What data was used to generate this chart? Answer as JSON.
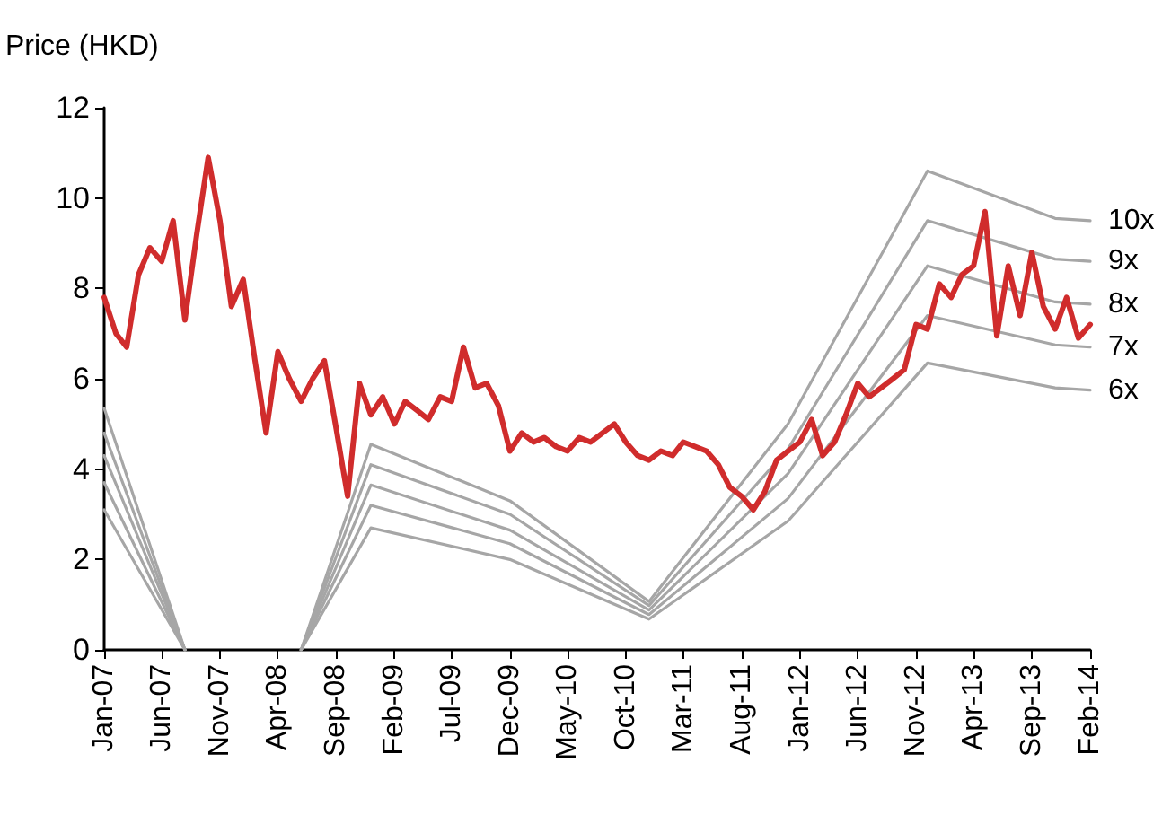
{
  "chart_data": {
    "type": "line",
    "ylabel": "Price (HKD)",
    "ylim": [
      0,
      12
    ],
    "yticks": [
      0,
      2,
      4,
      6,
      8,
      10,
      12
    ],
    "xlim": [
      "2007-01",
      "2014-02"
    ],
    "xticks": [
      {
        "value": "2007-01",
        "label": "Jan-07"
      },
      {
        "value": "2007-06",
        "label": "Jun-07"
      },
      {
        "value": "2007-11",
        "label": "Nov-07"
      },
      {
        "value": "2008-04",
        "label": "Apr-08"
      },
      {
        "value": "2008-09",
        "label": "Sep-08"
      },
      {
        "value": "2009-02",
        "label": "Feb-09"
      },
      {
        "value": "2009-07",
        "label": "Jul-09"
      },
      {
        "value": "2009-12",
        "label": "Dec-09"
      },
      {
        "value": "2010-05",
        "label": "May-10"
      },
      {
        "value": "2010-10",
        "label": "Oct-10"
      },
      {
        "value": "2011-03",
        "label": "Mar-11"
      },
      {
        "value": "2011-08",
        "label": "Aug-11"
      },
      {
        "value": "2012-01",
        "label": "Jan-12"
      },
      {
        "value": "2012-06",
        "label": "Jun-12"
      },
      {
        "value": "2012-11",
        "label": "Nov-12"
      },
      {
        "value": "2013-04",
        "label": "Apr-13"
      },
      {
        "value": "2013-09",
        "label": "Sep-13"
      },
      {
        "value": "2014-02",
        "label": "Feb-14"
      }
    ],
    "grid": false,
    "legend": false,
    "marker": "none",
    "line_style": "solid",
    "series": [
      {
        "name": "10x",
        "color": "#a6a6a6",
        "x": [
          "2007-01",
          "2007-08",
          "2008-01",
          "2008-06",
          "2008-12",
          "2009-12",
          "2010-12",
          "2011-12",
          "2012-12",
          "2013-11",
          "2014-02"
        ],
        "values": [
          5.35,
          0,
          null,
          0,
          4.55,
          3.3,
          1.07,
          5.0,
          10.6,
          9.55,
          9.5
        ]
      },
      {
        "name": "9x",
        "color": "#a6a6a6",
        "x": [
          "2007-01",
          "2007-08",
          "2008-01",
          "2008-06",
          "2008-12",
          "2009-12",
          "2010-12",
          "2011-12",
          "2012-12",
          "2013-11",
          "2014-02"
        ],
        "values": [
          4.8,
          0,
          null,
          0,
          4.1,
          3.0,
          0.98,
          4.45,
          9.5,
          8.65,
          8.6
        ]
      },
      {
        "name": "8x",
        "color": "#a6a6a6",
        "x": [
          "2007-01",
          "2007-08",
          "2008-01",
          "2008-06",
          "2008-12",
          "2009-12",
          "2010-12",
          "2011-12",
          "2012-12",
          "2013-11",
          "2014-02"
        ],
        "values": [
          4.3,
          0,
          null,
          0,
          3.65,
          2.65,
          0.88,
          3.9,
          8.5,
          7.7,
          7.65
        ]
      },
      {
        "name": "7x",
        "color": "#a6a6a6",
        "x": [
          "2007-01",
          "2007-08",
          "2008-01",
          "2008-06",
          "2008-12",
          "2009-12",
          "2010-12",
          "2011-12",
          "2012-12",
          "2013-11",
          "2014-02"
        ],
        "values": [
          3.7,
          0,
          null,
          0,
          3.2,
          2.35,
          0.78,
          3.35,
          7.4,
          6.75,
          6.7
        ]
      },
      {
        "name": "6x",
        "color": "#a6a6a6",
        "x": [
          "2007-01",
          "2007-08",
          "2008-01",
          "2008-06",
          "2008-12",
          "2009-12",
          "2010-12",
          "2011-12",
          "2012-12",
          "2013-11",
          "2014-02"
        ],
        "values": [
          3.1,
          0,
          null,
          0,
          2.7,
          2.0,
          0.68,
          2.85,
          6.35,
          5.8,
          5.75
        ]
      },
      {
        "color": "#d02c2c",
        "x": [
          "2007-01",
          "2007-02",
          "2007-03",
          "2007-04",
          "2007-05",
          "2007-06",
          "2007-07",
          "2007-08",
          "2007-09",
          "2007-10",
          "2007-11",
          "2007-12",
          "2008-01",
          "2008-02",
          "2008-03",
          "2008-04",
          "2008-05",
          "2008-06",
          "2008-07",
          "2008-08",
          "2008-09",
          "2008-10",
          "2008-11",
          "2008-12",
          "2009-01",
          "2009-02",
          "2009-03",
          "2009-04",
          "2009-05",
          "2009-06",
          "2009-07",
          "2009-08",
          "2009-09",
          "2009-10",
          "2009-11",
          "2009-12",
          "2010-01",
          "2010-02",
          "2010-03",
          "2010-04",
          "2010-05",
          "2010-06",
          "2010-07",
          "2010-08",
          "2010-09",
          "2010-10",
          "2010-11",
          "2010-12",
          "2011-01",
          "2011-02",
          "2011-03",
          "2011-04",
          "2011-05",
          "2011-06",
          "2011-07",
          "2011-08",
          "2011-09",
          "2011-10",
          "2011-11",
          "2011-12",
          "2012-01",
          "2012-02",
          "2012-03",
          "2012-04",
          "2012-05",
          "2012-06",
          "2012-07",
          "2012-08",
          "2012-09",
          "2012-10",
          "2012-11",
          "2012-12",
          "2013-01",
          "2013-02",
          "2013-03",
          "2013-04",
          "2013-05",
          "2013-06",
          "2013-07",
          "2013-08",
          "2013-09",
          "2013-10",
          "2013-11",
          "2013-12",
          "2014-01",
          "2014-02"
        ],
        "values": [
          7.8,
          7.0,
          6.7,
          8.3,
          8.9,
          8.6,
          9.5,
          7.3,
          9.2,
          10.9,
          9.5,
          7.6,
          8.2,
          6.4,
          4.8,
          6.6,
          6.0,
          5.5,
          6.0,
          6.4,
          4.9,
          3.4,
          5.9,
          5.2,
          5.6,
          5.0,
          5.5,
          5.3,
          5.1,
          5.6,
          5.5,
          6.7,
          5.8,
          5.9,
          5.4,
          4.4,
          4.8,
          4.6,
          4.7,
          4.5,
          4.4,
          4.7,
          4.6,
          4.8,
          5.0,
          4.6,
          4.3,
          4.2,
          4.4,
          4.3,
          4.6,
          4.5,
          4.4,
          4.1,
          3.6,
          3.4,
          3.1,
          3.5,
          4.2,
          4.4,
          4.6,
          5.1,
          4.3,
          4.6,
          5.2,
          5.9,
          5.6,
          5.8,
          6.0,
          6.2,
          7.2,
          7.1,
          8.1,
          7.8,
          8.3,
          8.5,
          9.7,
          6.95,
          8.5,
          7.4,
          8.8,
          7.6,
          7.1,
          7.8,
          6.9,
          7.2
        ]
      }
    ]
  }
}
